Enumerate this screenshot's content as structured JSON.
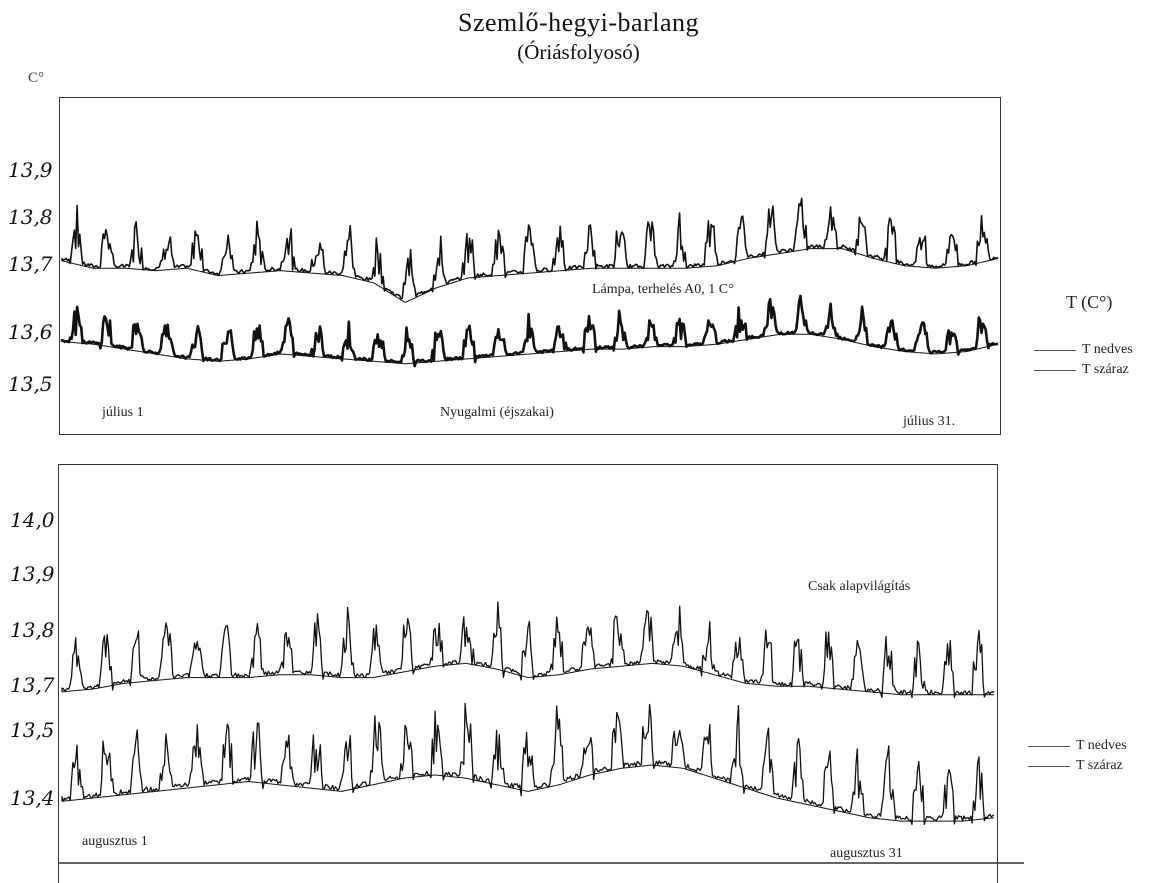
{
  "title": "Szemlő-hegyi-barlang",
  "subtitle": "(Óriásfolyosó)",
  "unit_label": "C°",
  "legend_title": "T (C°)",
  "chart_data": [
    {
      "type": "line",
      "period": "július",
      "x_start_label": "július 1",
      "x_end_label": "július 31.",
      "x": [
        1,
        31
      ],
      "yticks": [
        "13,9",
        "13,8",
        "13,7",
        "13,6",
        "13,5"
      ],
      "ylim": [
        13.45,
        13.95
      ],
      "annotations": [
        "Lámpa, terhelés A0, 1 C°",
        "Nyugalmi (éjszakai)"
      ],
      "legend": [
        "T nedves",
        "T száraz"
      ],
      "series": [
        {
          "name": "T nedves",
          "baseline": [
            13.735,
            13.72,
            13.72,
            13.715,
            13.72,
            13.705,
            13.71,
            13.715,
            13.71,
            13.705,
            13.69,
            13.65,
            13.68,
            13.7,
            13.705,
            13.71,
            13.715,
            13.72,
            13.72,
            13.72,
            13.72,
            13.725,
            13.74,
            13.75,
            13.76,
            13.76,
            13.74,
            13.725,
            13.72,
            13.725,
            13.74
          ],
          "peak_amplitude": 0.1
        },
        {
          "name": "T száraz",
          "baseline": [
            13.57,
            13.565,
            13.555,
            13.545,
            13.535,
            13.53,
            13.535,
            13.545,
            13.54,
            13.535,
            13.53,
            13.525,
            13.53,
            13.535,
            13.54,
            13.545,
            13.55,
            13.555,
            13.555,
            13.56,
            13.56,
            13.565,
            13.575,
            13.585,
            13.585,
            13.575,
            13.56,
            13.55,
            13.545,
            13.55,
            13.565
          ],
          "peak_amplitude": 0.07
        }
      ]
    },
    {
      "type": "line",
      "period": "augusztus",
      "x_start_label": "augusztus 1",
      "x_end_label": "augusztus 31",
      "x": [
        1,
        31
      ],
      "yticks": [
        "14,0",
        "13,9",
        "13,8",
        "13,7",
        "13,5",
        "13,4"
      ],
      "annotations": [
        "Csak alapvilágítás"
      ],
      "legend": [
        "T nedves",
        "T száraz"
      ],
      "series": [
        {
          "name": "T nedves",
          "baseline": [
            13.695,
            13.7,
            13.71,
            13.715,
            13.72,
            13.72,
            13.72,
            13.725,
            13.725,
            13.72,
            13.72,
            13.73,
            13.74,
            13.745,
            13.735,
            13.72,
            13.725,
            13.735,
            13.74,
            13.745,
            13.74,
            13.725,
            13.71,
            13.705,
            13.705,
            13.7,
            13.695,
            13.69,
            13.69,
            13.69,
            13.69
          ],
          "peak_amplitude": 0.1
        },
        {
          "name": "T száraz",
          "baseline": [
            13.395,
            13.4,
            13.405,
            13.41,
            13.415,
            13.42,
            13.425,
            13.42,
            13.415,
            13.41,
            13.42,
            13.43,
            13.435,
            13.43,
            13.42,
            13.41,
            13.42,
            13.435,
            13.445,
            13.45,
            13.445,
            13.43,
            13.415,
            13.4,
            13.39,
            13.38,
            13.37,
            13.365,
            13.365,
            13.365,
            13.37
          ],
          "peak_amplitude": 0.1
        }
      ]
    }
  ],
  "colors": {
    "line": "#111111",
    "frame": "#333333"
  }
}
